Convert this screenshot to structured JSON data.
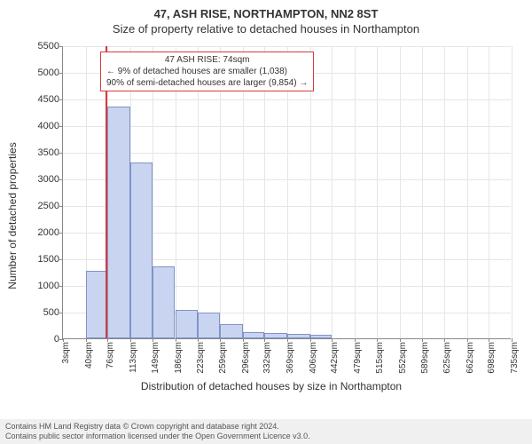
{
  "title_line1": "47, ASH RISE, NORTHAMPTON, NN2 8ST",
  "title_line2": "Size of property relative to detached houses in Northampton",
  "ylabel": "Number of detached properties",
  "xlabel": "Distribution of detached houses by size in Northampton",
  "footer_line1": "Contains HM Land Registry data © Crown copyright and database right 2024.",
  "footer_line2": "Contains public sector information licensed under the Open Government Licence v3.0.",
  "chart": {
    "type": "histogram",
    "ylim": [
      0,
      5500
    ],
    "ytick_step": 500,
    "bar_fill": "#c9d4f0",
    "bar_border": "#7f93c9",
    "grid_color": "#e6e6e6",
    "axis_color": "#888888",
    "refline_color": "#d93a3a",
    "refline_x": 74,
    "x_categories": [
      "3sqm",
      "40sqm",
      "76sqm",
      "113sqm",
      "149sqm",
      "186sqm",
      "223sqm",
      "259sqm",
      "296sqm",
      "332sqm",
      "369sqm",
      "406sqm",
      "442sqm",
      "479sqm",
      "515sqm",
      "552sqm",
      "589sqm",
      "625sqm",
      "662sqm",
      "698sqm",
      "735sqm"
    ],
    "x_numeric": [
      3,
      40,
      76,
      113,
      149,
      186,
      223,
      259,
      296,
      332,
      369,
      406,
      442,
      479,
      515,
      552,
      589,
      625,
      662,
      698,
      735
    ],
    "bars": [
      {
        "x_start": 3,
        "x_end": 40,
        "value": 0
      },
      {
        "x_start": 40,
        "x_end": 76,
        "value": 1270
      },
      {
        "x_start": 76,
        "x_end": 113,
        "value": 4350
      },
      {
        "x_start": 113,
        "x_end": 149,
        "value": 3300
      },
      {
        "x_start": 149,
        "x_end": 186,
        "value": 1350
      },
      {
        "x_start": 186,
        "x_end": 223,
        "value": 540
      },
      {
        "x_start": 223,
        "x_end": 259,
        "value": 480
      },
      {
        "x_start": 259,
        "x_end": 296,
        "value": 260
      },
      {
        "x_start": 296,
        "x_end": 332,
        "value": 120
      },
      {
        "x_start": 332,
        "x_end": 369,
        "value": 100
      },
      {
        "x_start": 369,
        "x_end": 406,
        "value": 80
      },
      {
        "x_start": 406,
        "x_end": 442,
        "value": 70
      }
    ],
    "annotation": {
      "line1": "47 ASH RISE: 74sqm",
      "line2": "← 9% of detached houses are smaller (1,038)",
      "line3": "90% of semi-detached houses are larger (9,854) →",
      "box_border": "#d93a3a"
    }
  }
}
